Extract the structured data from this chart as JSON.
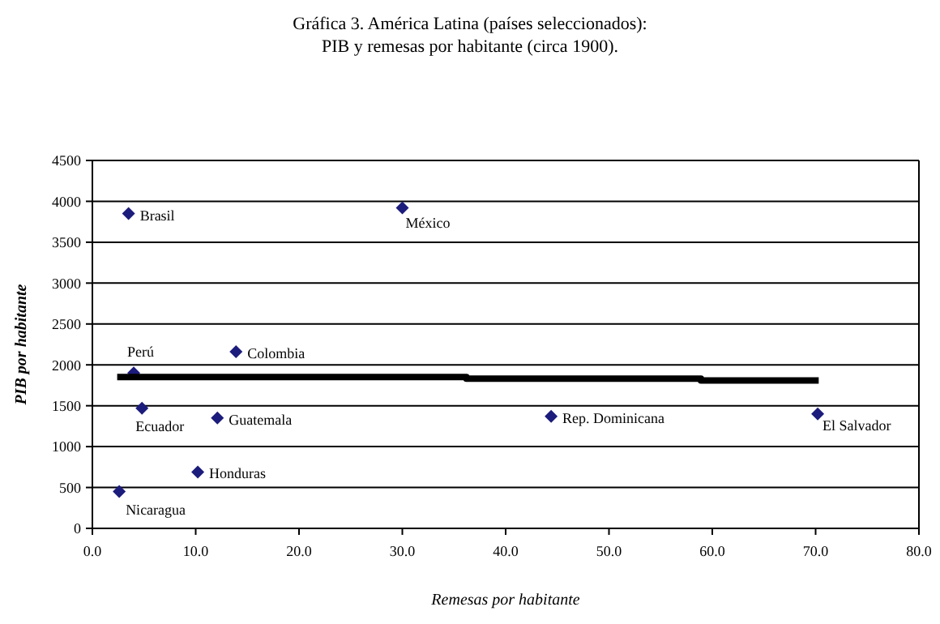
{
  "chart_data": {
    "type": "scatter",
    "title": "Gráfica 3. América Latina (países seleccionados):",
    "subtitle": "PIB y remesas por habitante (circa 1900).",
    "xlabel": "Remesas por habitante",
    "ylabel": "PIB por habitante",
    "series": [
      {
        "color": "#1c1c7c",
        "marker": "diamond",
        "x": [
          3.5,
          30.0,
          4.0,
          13.9,
          4.8,
          12.1,
          10.2,
          2.6,
          44.4,
          70.2
        ],
        "values": [
          3850,
          3920,
          1900,
          2160,
          1470,
          1350,
          690,
          450,
          1370,
          1400
        ]
      },
      {
        "type": "line",
        "color": "#000000",
        "line_style": "solid",
        "x": [
          2.4,
          36.2,
          36.2,
          58.9,
          58.9,
          70.3
        ],
        "values": [
          1850,
          1850,
          1830,
          1830,
          1810,
          1810
        ]
      }
    ],
    "annotations": [
      {
        "text": "Brasil",
        "x": 3.5,
        "y": 3850
      },
      {
        "text": "México",
        "x": 30.0,
        "y": 3920
      },
      {
        "text": "Perú",
        "x": 4.0,
        "y": 1900
      },
      {
        "text": "Colombia",
        "x": 13.9,
        "y": 2160
      },
      {
        "text": "Ecuador",
        "x": 4.8,
        "y": 1470
      },
      {
        "text": "Guatemala",
        "x": 12.1,
        "y": 1350
      },
      {
        "text": "Honduras",
        "x": 10.2,
        "y": 690
      },
      {
        "text": "Nicaragua",
        "x": 2.6,
        "y": 450
      },
      {
        "text": "Rep. Dominicana",
        "x": 44.4,
        "y": 1370
      },
      {
        "text": "El Salvador",
        "x": 70.2,
        "y": 1400
      }
    ],
    "xlim": [
      0,
      80
    ],
    "xticks": [
      {
        "value": 0,
        "label": "0.0"
      },
      {
        "value": 10,
        "label": "10.0"
      },
      {
        "value": 20,
        "label": "20.0"
      },
      {
        "value": 30,
        "label": "30.0"
      },
      {
        "value": 40,
        "label": "40.0"
      },
      {
        "value": 50,
        "label": "50.0"
      },
      {
        "value": 60,
        "label": "60.0"
      },
      {
        "value": 70,
        "label": "70.0"
      },
      {
        "value": 80,
        "label": "80.0"
      }
    ],
    "ylim": [
      0,
      4500
    ],
    "yticks": [
      0,
      500,
      1000,
      1500,
      2000,
      2500,
      3000,
      3500,
      4000,
      4500
    ],
    "grid": "y"
  }
}
